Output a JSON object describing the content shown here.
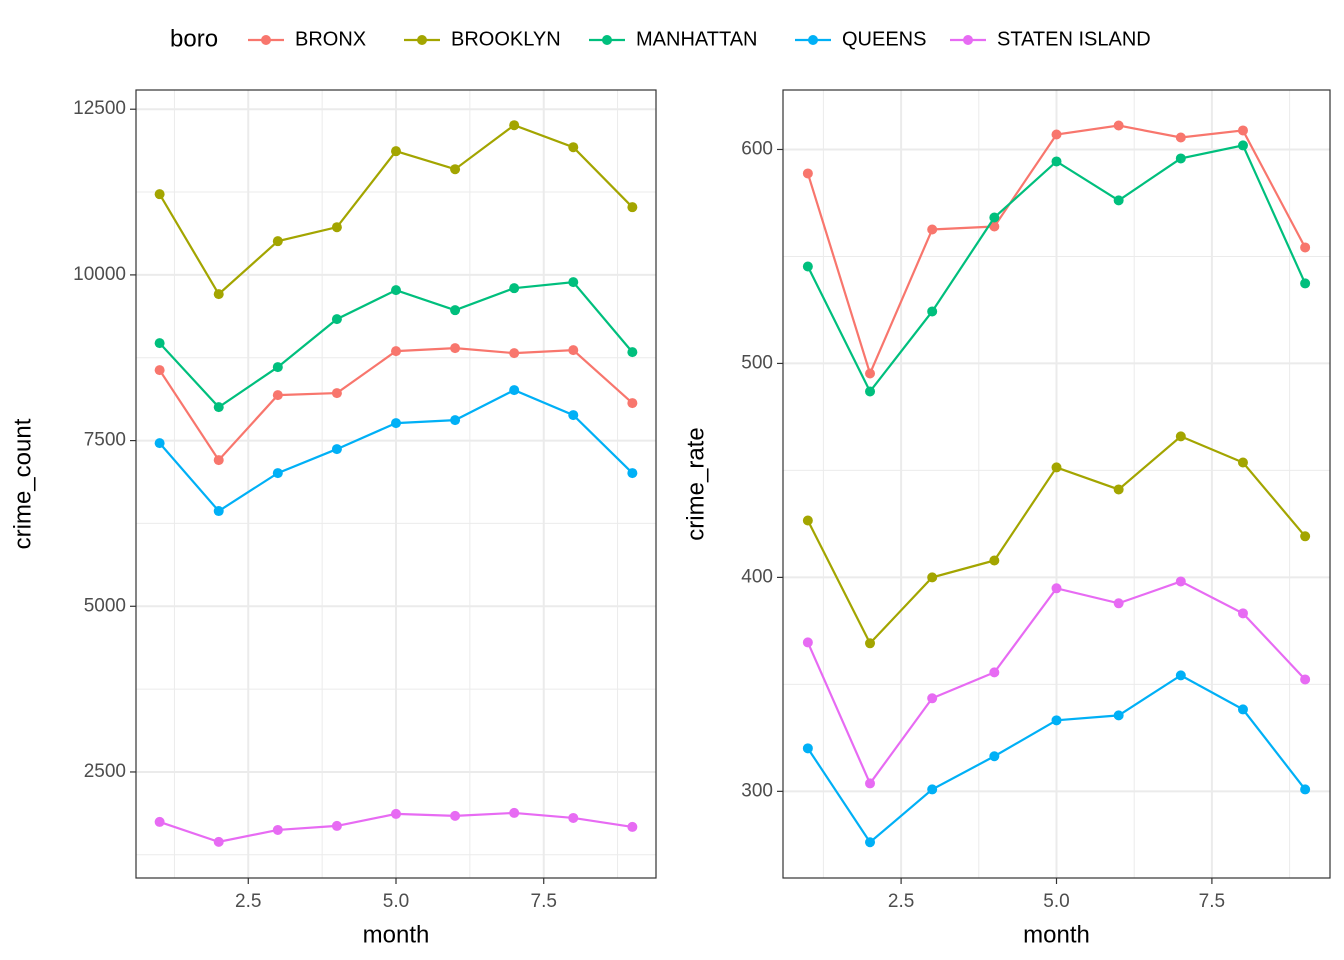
{
  "legend": {
    "title": "boro"
  },
  "chart_data": [
    {
      "type": "line",
      "x_label": "month",
      "y_label": "crime_count",
      "x": [
        1,
        2,
        3,
        4,
        5,
        6,
        7,
        8,
        9
      ],
      "xlim": [
        0.6,
        9.4
      ],
      "xticks": [
        2.5,
        {
          "value": 5,
          "label": "5.0"
        },
        7.5
      ],
      "ylim": [
        900,
        12790
      ],
      "yticks": [
        2500,
        5000,
        7500,
        10000,
        12500
      ],
      "grid": true,
      "series": [
        {
          "name": "BRONX",
          "color": "#F8766D",
          "values": [
            8563,
            7206,
            8186,
            8217,
            8850,
            8895,
            8820,
            8865,
            8066
          ]
        },
        {
          "name": "BROOKLYN",
          "color": "#A3A500",
          "values": [
            11218,
            9710,
            10509,
            10720,
            11867,
            11595,
            12259,
            11927,
            11022
          ]
        },
        {
          "name": "MANHATTAN",
          "color": "#00BF7D",
          "values": [
            8971,
            8005,
            8609,
            9333,
            9770,
            9468,
            9800,
            9891,
            8835
          ]
        },
        {
          "name": "QUEENS",
          "color": "#00B0F6",
          "values": [
            7462,
            6437,
            7010,
            7372,
            7764,
            7809,
            8262,
            7885,
            7010
          ]
        },
        {
          "name": "STATEN ISLAND",
          "color": "#E76BF3",
          "values": [
            1746,
            1445,
            1625,
            1686,
            1867,
            1837,
            1882,
            1806,
            1671
          ]
        }
      ]
    },
    {
      "type": "line",
      "x_label": "month",
      "y_label": "crime_rate",
      "x": [
        1,
        2,
        3,
        4,
        5,
        6,
        7,
        8,
        9
      ],
      "xlim": [
        0.6,
        9.4
      ],
      "xticks": [
        2.5,
        {
          "value": 5,
          "label": "5.0"
        },
        7.5
      ],
      "ylim": [
        259.5,
        627.8
      ],
      "yticks": [
        300,
        400,
        500,
        600
      ],
      "grid": true,
      "series": [
        {
          "name": "BRONX",
          "color": "#F8766D",
          "values": [
            588.8,
            495.3,
            562.6,
            564.0,
            607.0,
            611.2,
            605.6,
            608.9,
            554.2
          ]
        },
        {
          "name": "BROOKLYN",
          "color": "#A3A500",
          "values": [
            426.6,
            369.2,
            400.0,
            407.9,
            451.4,
            441.1,
            465.9,
            453.7,
            419.2
          ]
        },
        {
          "name": "MANHATTAN",
          "color": "#00BF7D",
          "values": [
            545.3,
            486.9,
            524.3,
            568.2,
            594.4,
            576.2,
            595.8,
            601.9,
            537.4
          ]
        },
        {
          "name": "QUEENS",
          "color": "#00B0F6",
          "values": [
            320.1,
            276.2,
            300.9,
            316.4,
            333.2,
            335.5,
            354.2,
            338.3,
            300.9
          ]
        },
        {
          "name": "STATEN ISLAND",
          "color": "#E76BF3",
          "values": [
            369.6,
            303.7,
            343.5,
            355.6,
            394.9,
            387.9,
            398.1,
            383.2,
            352.3
          ]
        }
      ]
    }
  ]
}
